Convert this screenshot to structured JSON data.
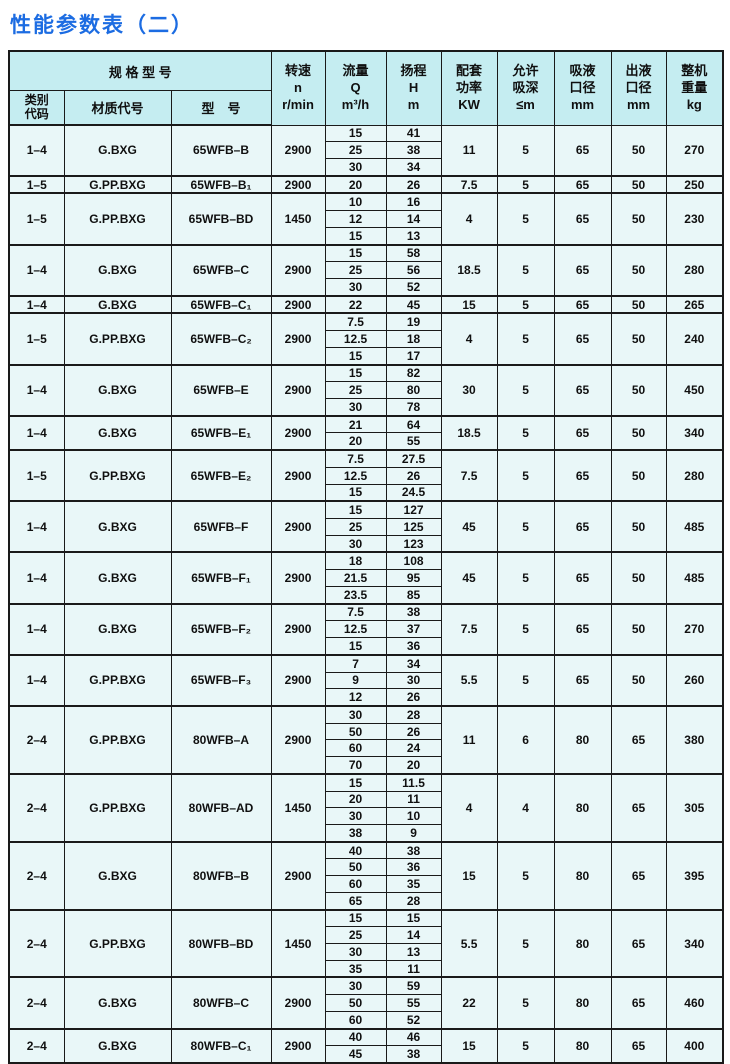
{
  "title": "性能参数表（二）",
  "colors": {
    "title_blue": "#1c6ce2",
    "header_bg": "#c5edf1",
    "body_bg": "#e9f7f8",
    "border": "#1a1a1a"
  },
  "table": {
    "header": {
      "spec_group": "规  格  型  号",
      "code": [
        "类别",
        "代码"
      ],
      "material": "材质代号",
      "model": "型　号",
      "speed": [
        "转速",
        "n",
        "r/min"
      ],
      "flow": [
        "流量",
        "Q",
        "m³/h"
      ],
      "head": [
        "扬程",
        "H",
        "m"
      ],
      "power": [
        "配套",
        "功率",
        "KW"
      ],
      "suction": [
        "允许",
        "吸深",
        "≤m"
      ],
      "inlet": [
        "吸液",
        "口径",
        "mm"
      ],
      "outlet": [
        "出液",
        "口径",
        "mm"
      ],
      "weight": [
        "整机",
        "重量",
        "kg"
      ]
    },
    "groups": [
      {
        "code": "1–4",
        "material": "G.BXG",
        "model": "65WFB–B",
        "speed": "2900",
        "flows": [
          "15",
          "25",
          "30"
        ],
        "heads": [
          "41",
          "38",
          "34"
        ],
        "power": "11",
        "suction": "5",
        "inlet": "65",
        "outlet": "50",
        "weight": "270"
      },
      {
        "code": "1–5",
        "material": "G.PP.BXG",
        "model": "65WFB–B₁",
        "speed": "2900",
        "flows": [
          "20"
        ],
        "heads": [
          "26"
        ],
        "power": "7.5",
        "suction": "5",
        "inlet": "65",
        "outlet": "50",
        "weight": "250"
      },
      {
        "code": "1–5",
        "material": "G.PP.BXG",
        "model": "65WFB–BD",
        "speed": "1450",
        "flows": [
          "10",
          "12",
          "15"
        ],
        "heads": [
          "16",
          "14",
          "13"
        ],
        "power": "4",
        "suction": "5",
        "inlet": "65",
        "outlet": "50",
        "weight": "230"
      },
      {
        "code": "1–4",
        "material": "G.BXG",
        "model": "65WFB–C",
        "speed": "2900",
        "flows": [
          "15",
          "25",
          "30"
        ],
        "heads": [
          "58",
          "56",
          "52"
        ],
        "power": "18.5",
        "suction": "5",
        "inlet": "65",
        "outlet": "50",
        "weight": "280"
      },
      {
        "code": "1–4",
        "material": "G.BXG",
        "model": "65WFB–C₁",
        "speed": "2900",
        "flows": [
          "22"
        ],
        "heads": [
          "45"
        ],
        "power": "15",
        "suction": "5",
        "inlet": "65",
        "outlet": "50",
        "weight": "265"
      },
      {
        "code": "1–5",
        "material": "G.PP.BXG",
        "model": "65WFB–C₂",
        "speed": "2900",
        "flows": [
          "7.5",
          "12.5",
          "15"
        ],
        "heads": [
          "19",
          "18",
          "17"
        ],
        "power": "4",
        "suction": "5",
        "inlet": "65",
        "outlet": "50",
        "weight": "240"
      },
      {
        "code": "1–4",
        "material": "G.BXG",
        "model": "65WFB–E",
        "speed": "2900",
        "flows": [
          "15",
          "25",
          "30"
        ],
        "heads": [
          "82",
          "80",
          "78"
        ],
        "power": "30",
        "suction": "5",
        "inlet": "65",
        "outlet": "50",
        "weight": "450"
      },
      {
        "code": "1–4",
        "material": "G.BXG",
        "model": "65WFB–E₁",
        "speed": "2900",
        "flows": [
          "21",
          "20"
        ],
        "heads": [
          "64",
          "55"
        ],
        "power": "18.5",
        "suction": "5",
        "inlet": "65",
        "outlet": "50",
        "weight": "340"
      },
      {
        "code": "1–5",
        "material": "G.PP.BXG",
        "model": "65WFB–E₂",
        "speed": "2900",
        "flows": [
          "7.5",
          "12.5",
          "15"
        ],
        "heads": [
          "27.5",
          "26",
          "24.5"
        ],
        "power": "7.5",
        "suction": "5",
        "inlet": "65",
        "outlet": "50",
        "weight": "280"
      },
      {
        "code": "1–4",
        "material": "G.BXG",
        "model": "65WFB–F",
        "speed": "2900",
        "flows": [
          "15",
          "25",
          "30"
        ],
        "heads": [
          "127",
          "125",
          "123"
        ],
        "power": "45",
        "suction": "5",
        "inlet": "65",
        "outlet": "50",
        "weight": "485"
      },
      {
        "code": "1–4",
        "material": "G.BXG",
        "model": "65WFB–F₁",
        "speed": "2900",
        "flows": [
          "18",
          "21.5",
          "23.5"
        ],
        "heads": [
          "108",
          "95",
          "85"
        ],
        "power": "45",
        "suction": "5",
        "inlet": "65",
        "outlet": "50",
        "weight": "485"
      },
      {
        "code": "1–4",
        "material": "G.BXG",
        "model": "65WFB–F₂",
        "speed": "2900",
        "flows": [
          "7.5",
          "12.5",
          "15"
        ],
        "heads": [
          "38",
          "37",
          "36"
        ],
        "power": "7.5",
        "suction": "5",
        "inlet": "65",
        "outlet": "50",
        "weight": "270"
      },
      {
        "code": "1–4",
        "material": "G.PP.BXG",
        "model": "65WFB–F₃",
        "speed": "2900",
        "flows": [
          "7",
          "9",
          "12"
        ],
        "heads": [
          "34",
          "30",
          "26"
        ],
        "power": "5.5",
        "suction": "5",
        "inlet": "65",
        "outlet": "50",
        "weight": "260"
      },
      {
        "code": "2–4",
        "material": "G.PP.BXG",
        "model": "80WFB–A",
        "speed": "2900",
        "flows": [
          "30",
          "50",
          "60",
          "70"
        ],
        "heads": [
          "28",
          "26",
          "24",
          "20"
        ],
        "power": "11",
        "suction": "6",
        "inlet": "80",
        "outlet": "65",
        "weight": "380"
      },
      {
        "code": "2–4",
        "material": "G.PP.BXG",
        "model": "80WFB–AD",
        "speed": "1450",
        "flows": [
          "15",
          "20",
          "30",
          "38"
        ],
        "heads": [
          "11.5",
          "11",
          "10",
          "9"
        ],
        "power": "4",
        "suction": "4",
        "inlet": "80",
        "outlet": "65",
        "weight": "305"
      },
      {
        "code": "2–4",
        "material": "G.BXG",
        "model": "80WFB–B",
        "speed": "2900",
        "flows": [
          "40",
          "50",
          "60",
          "65"
        ],
        "heads": [
          "38",
          "36",
          "35",
          "28"
        ],
        "power": "15",
        "suction": "5",
        "inlet": "80",
        "outlet": "65",
        "weight": "395"
      },
      {
        "code": "2–4",
        "material": "G.PP.BXG",
        "model": "80WFB–BD",
        "speed": "1450",
        "flows": [
          "15",
          "25",
          "30",
          "35"
        ],
        "heads": [
          "15",
          "14",
          "13",
          "11"
        ],
        "power": "5.5",
        "suction": "5",
        "inlet": "80",
        "outlet": "65",
        "weight": "340"
      },
      {
        "code": "2–4",
        "material": "G.BXG",
        "model": "80WFB–C",
        "speed": "2900",
        "flows": [
          "30",
          "50",
          "60"
        ],
        "heads": [
          "59",
          "55",
          "52"
        ],
        "power": "22",
        "suction": "5",
        "inlet": "80",
        "outlet": "65",
        "weight": "460"
      },
      {
        "code": "2–4",
        "material": "G.BXG",
        "model": "80WFB–C₁",
        "speed": "2900",
        "flows": [
          "40",
          "45"
        ],
        "heads": [
          "46",
          "38"
        ],
        "power": "15",
        "suction": "5",
        "inlet": "80",
        "outlet": "65",
        "weight": "400"
      }
    ]
  }
}
